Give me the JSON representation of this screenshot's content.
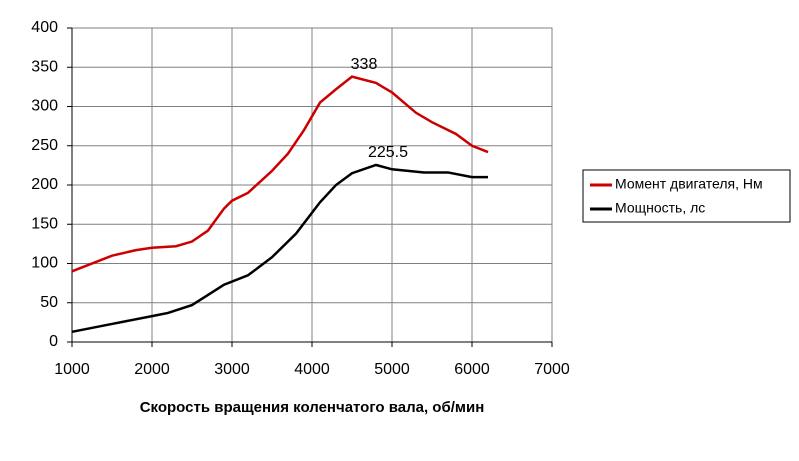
{
  "chart_data": {
    "type": "line",
    "x_label": "Скорость вращения коленчатого вала, об/мин",
    "xlim": [
      1000,
      7000
    ],
    "xticks": [
      1000,
      2000,
      3000,
      4000,
      5000,
      6000,
      7000
    ],
    "ylim": [
      0,
      400
    ],
    "yticks": [
      0,
      50,
      100,
      150,
      200,
      250,
      300,
      350,
      400
    ],
    "grid": true,
    "legend": "right",
    "series": [
      {
        "name": "Момент двигателя, Нм",
        "color": "#cc0000",
        "x": [
          1000,
          1200,
          1500,
          1800,
          2000,
          2300,
          2500,
          2700,
          2900,
          3000,
          3200,
          3500,
          3700,
          3900,
          4100,
          4300,
          4500,
          4800,
          5000,
          5300,
          5500,
          5800,
          6000,
          6200
        ],
        "values": [
          90,
          98,
          110,
          117,
          120,
          122,
          128,
          142,
          170,
          180,
          190,
          218,
          240,
          270,
          305,
          322,
          338,
          330,
          318,
          292,
          280,
          265,
          250,
          242
        ]
      },
      {
        "name": "Мощность, лс",
        "color": "#000000",
        "x": [
          1000,
          1500,
          2000,
          2200,
          2500,
          2700,
          2900,
          3200,
          3500,
          3800,
          4100,
          4300,
          4500,
          4800,
          5000,
          5400,
          5700,
          6000,
          6200
        ],
        "values": [
          13,
          23,
          33,
          37,
          47,
          60,
          73,
          85,
          108,
          138,
          178,
          200,
          215,
          225.5,
          220,
          216,
          216,
          210,
          210
        ]
      }
    ],
    "annotations": [
      {
        "x": 4500,
        "value": 338
      },
      {
        "x": 4800,
        "value": 225.5
      }
    ]
  }
}
